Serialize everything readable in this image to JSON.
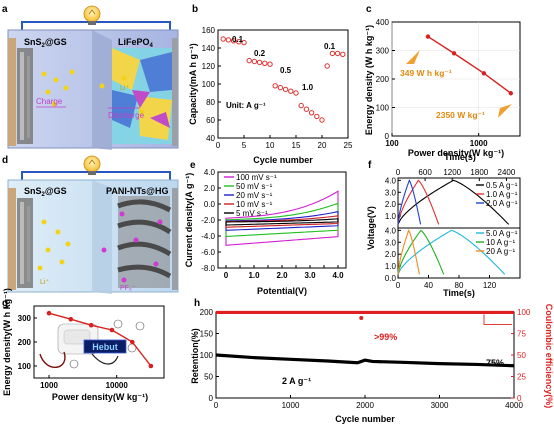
{
  "panels": {
    "a": {
      "label": "a",
      "left_title": "SnS$_2$@GS",
      "left_title_text": "SnS",
      "right_title": "LiFePO",
      "right_sub": "4",
      "left_sub": "2",
      "left_suffix": "@GS",
      "charge": "Charge",
      "discharge": "Discharge",
      "ion": "Li⁺",
      "bulb_icon": "lightbulb-icon"
    },
    "b": {
      "label": "b",
      "ylabel": "Capacity(mA h g⁻¹)",
      "xlabel": "Cycle number",
      "unit_text": "Unit: A g⁻¹",
      "rate_labels": [
        "0.1",
        "0.2",
        "0.5",
        "1.0",
        "0.1"
      ],
      "xticks": [
        "0",
        "5",
        "10",
        "15",
        "20",
        "25"
      ],
      "yticks": [
        "40",
        "60",
        "80",
        "100",
        "120",
        "140",
        "160"
      ]
    },
    "c": {
      "label": "c",
      "ylabel": "Energy density (W h kg⁻¹)",
      "xlabel": "Power density(W kg⁻¹)",
      "annot_high": "349 W h kg⁻¹",
      "annot_low": "2350 W kg⁻¹",
      "xticks": [
        "100",
        "1000"
      ],
      "yticks": [
        "0",
        "100",
        "200",
        "300",
        "400"
      ]
    },
    "d": {
      "label": "d",
      "left_title_text": "SnS",
      "left_sub": "2",
      "left_suffix": "@GS",
      "right_title": "PANI-NTs@HG",
      "ion_li": "Li⁺",
      "ion_pf": "PF₆⁻",
      "bulb_icon": "lightbulb-icon"
    },
    "e": {
      "label": "e",
      "ylabel": "Current density(A g⁻¹)",
      "xlabel": "Potential(V)",
      "xticks": [
        "0",
        "0.5",
        "1.0",
        "1.5",
        "2.0",
        "2.5",
        "3.0",
        "3.5",
        "4.0"
      ],
      "yticks": [
        "-8.0",
        "-6.0",
        "-4.0",
        "-2.0",
        "0.0",
        "2.0",
        "4.0"
      ],
      "legend": [
        "100 mV s⁻¹",
        "50 mV s⁻¹",
        "20 mV s⁻¹",
        "10 mV s⁻¹",
        "5 mV s⁻¹"
      ],
      "colors": [
        "#d21fd2",
        "#21c021",
        "#2020d0",
        "#d01f1f",
        "#000000"
      ]
    },
    "f": {
      "label": "f",
      "ylabel": "Voltage(V)",
      "top_xlabel": "Time(s)",
      "bottom_xlabel": "Time(s)",
      "top_xticks": [
        "0",
        "600",
        "1200",
        "1800",
        "2400"
      ],
      "bottom_xticks": [
        "0",
        "40",
        "80",
        "120"
      ],
      "yticks": [
        "0.0",
        "1.0",
        "2.0",
        "3.0",
        "4.0"
      ],
      "legend_top": [
        "0.5 A g⁻¹",
        "1.0 A g⁻¹",
        "2.0 A g⁻¹"
      ],
      "legend_bottom": [
        "5.0 A g⁻¹",
        "10 A g⁻¹",
        "20 A g⁻¹"
      ],
      "colors_top": [
        "#000000",
        "#e03030",
        "#2040d0"
      ],
      "colors_bottom": [
        "#21b8d8",
        "#21b021",
        "#f08a20"
      ]
    },
    "g": {
      "label": "g",
      "ylabel": "Energy density(W h kg⁻¹)",
      "xlabel": "Power density(W  kg⁻¹)",
      "xticks": [
        "1000",
        "10000"
      ],
      "yticks": [
        "100",
        "200",
        "300"
      ],
      "screen_text": "Hebut"
    },
    "h": {
      "label": "h",
      "ylabel_left": "Retention(%)",
      "ylabel_right": "Coulombic efficiency(%)",
      "xlabel": "Cycle number",
      "xticks": [
        "0",
        "1000",
        "2000",
        "3000",
        "4000"
      ],
      "yticks_left": [
        "0",
        "50",
        "100",
        "150",
        "200"
      ],
      "yticks_right": [
        "0",
        "25",
        "50",
        "75",
        "100"
      ],
      "annot_ce": ">99%",
      "annot_ret": "75%",
      "annot_rate": "2 A g⁻¹"
    }
  },
  "chart_data": [
    {
      "panel": "b",
      "type": "scatter",
      "x": [
        1,
        2,
        3,
        4,
        5,
        6,
        7,
        8,
        9,
        10,
        11,
        12,
        13,
        14,
        15,
        16,
        17,
        18,
        19,
        20,
        21,
        22,
        23,
        24
      ],
      "values": [
        150,
        149,
        148,
        147,
        146,
        126,
        125,
        124,
        123,
        122,
        98,
        96,
        94,
        92,
        90,
        76,
        72,
        68,
        64,
        60,
        120,
        134,
        134,
        133
      ],
      "xlim": [
        0,
        25
      ],
      "ylim": [
        40,
        160
      ],
      "color": "#e03030"
    },
    {
      "panel": "c",
      "type": "line",
      "x": [
        260,
        520,
        1150,
        2350
      ],
      "values": [
        349,
        290,
        220,
        150
      ],
      "xscale": "log",
      "xlim": [
        100,
        3000
      ],
      "ylim": [
        0,
        400
      ],
      "color": "#d82020"
    },
    {
      "panel": "g",
      "type": "line",
      "x": [
        1000,
        2100,
        4200,
        8500,
        17000,
        32000
      ],
      "values": [
        320,
        295,
        270,
        250,
        200,
        100
      ],
      "xscale": "log",
      "xlim": [
        600,
        50000
      ],
      "ylim": [
        50,
        350
      ],
      "color": "#d82020"
    },
    {
      "panel": "h",
      "type": "line",
      "series": [
        {
          "name": "Retention",
          "x": [
            0,
            500,
            1000,
            1500,
            1900,
            2000,
            2100,
            2500,
            3000,
            3500,
            4000
          ],
          "values": [
            100,
            94,
            90,
            86,
            82,
            88,
            85,
            83,
            80,
            78,
            75
          ],
          "color": "#000000"
        },
        {
          "name": "Coulombic efficiency",
          "x": [
            0,
            1000,
            2000,
            3000,
            4000
          ],
          "values": [
            99.5,
            99.5,
            99.5,
            99.5,
            99.5
          ],
          "color": "#e02020"
        }
      ],
      "xlim": [
        0,
        4000
      ],
      "ylim": [
        0,
        200
      ]
    }
  ]
}
